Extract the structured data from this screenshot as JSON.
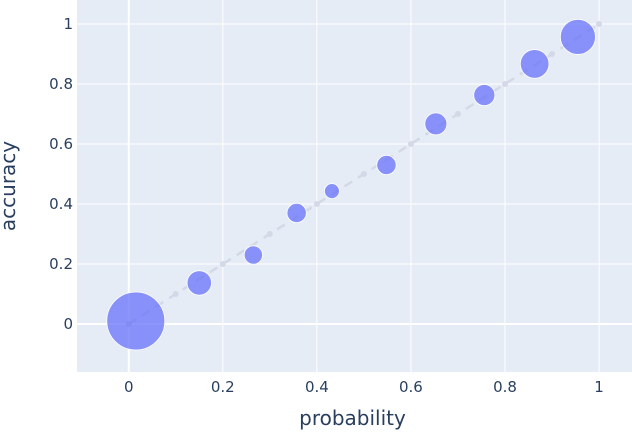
{
  "chart_data": {
    "type": "scatter",
    "xlabel": "probability",
    "ylabel": "accuracy",
    "xlim": [
      -0.11,
      1.07
    ],
    "ylim": [
      -0.16,
      1.08
    ],
    "xticks": [
      0,
      0.2,
      0.4,
      0.6,
      0.8,
      1
    ],
    "xtick_labels": [
      "0",
      "0.2",
      "0.4",
      "0.6",
      "0.8",
      "1"
    ],
    "yticks": [
      0,
      0.2,
      0.4,
      0.6,
      0.8,
      1
    ],
    "ytick_labels": [
      "0",
      "0.2",
      "0.4",
      "0.6",
      "0.8",
      "1"
    ],
    "grid": true,
    "legend": "none",
    "colors": {
      "plot_background": "#e5ecf6",
      "grid": "#ffffff",
      "reference_line": "#d3d9e6",
      "points": "#636efa"
    },
    "reference_line": {
      "x": [
        0,
        0.1,
        0.2,
        0.3,
        0.4,
        0.5,
        0.6,
        0.7,
        0.8,
        0.9,
        1.0
      ],
      "y": [
        0,
        0.1,
        0.2,
        0.3,
        0.4,
        0.5,
        0.6,
        0.7,
        0.8,
        0.9,
        1.0
      ]
    },
    "series": [
      {
        "x": [
          0.015,
          0.15,
          0.265,
          0.357,
          0.432,
          0.548,
          0.653,
          0.756,
          0.863,
          0.955
        ],
        "y": [
          0.01,
          0.137,
          0.23,
          0.37,
          0.443,
          0.53,
          0.667,
          0.763,
          0.867,
          0.957
        ],
        "size": [
          0.9,
          0.16,
          0.09,
          0.1,
          0.06,
          0.1,
          0.13,
          0.12,
          0.22,
          0.33
        ]
      }
    ]
  }
}
